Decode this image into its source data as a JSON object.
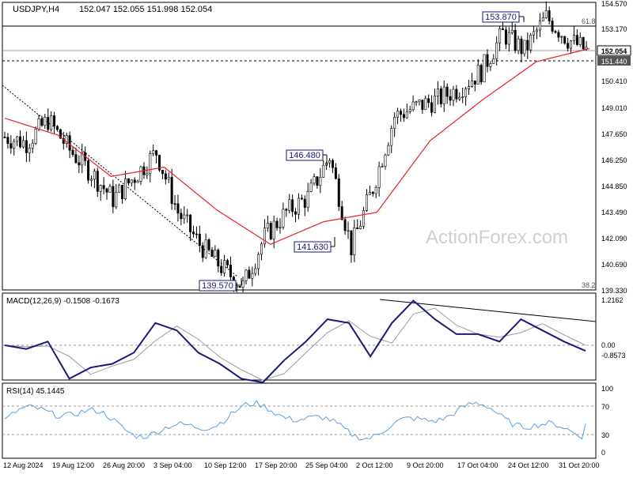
{
  "header": {
    "symbol": "USDJPY,H4",
    "ohlc": "152.047 152.055 151.998 152.054"
  },
  "watermark": "ActionForex.com",
  "colors": {
    "candle": "#000000",
    "ma": "#e8202a",
    "macd": "#1a1a7a",
    "signal": "#9a9a9a",
    "rsi": "#5aa0e0",
    "grid": "#9a9a9a",
    "label_box": "#1a1a7a"
  },
  "price_axis": {
    "ticks": [
      "154.570",
      "153.170",
      "151.440",
      "150.410",
      "149.010",
      "147.650",
      "146.250",
      "144.850",
      "143.490",
      "142.090",
      "140.690",
      "139.330"
    ]
  },
  "price_tags": {
    "current": "152.054",
    "support": "151.440"
  },
  "fib": {
    "upper": "61.8",
    "lower": "38.2"
  },
  "annotations": {
    "a1": "139.570",
    "a2": "146.480",
    "a3": "141.630",
    "a4": "153.870"
  },
  "macd": {
    "label": "MACD(12,26,9) -0.1508 -0.1673",
    "ticks": [
      "1.2162",
      "0.00",
      "-0.8573"
    ]
  },
  "rsi": {
    "label": "RSI(14) 45.1445",
    "ticks": [
      "100",
      "70",
      "30",
      "0"
    ]
  },
  "time_axis": {
    "ticks": [
      "12 Aug 2024",
      "19 Aug 12:00",
      "26 Aug 20:00",
      "3 Sep 04:00",
      "10 Sep 12:00",
      "17 Sep 20:00",
      "25 Sep 04:00",
      "2 Oct 12:00",
      "9 Oct 20:00",
      "17 Oct 04:00",
      "24 Oct 12:00",
      "31 Oct 20:00"
    ]
  },
  "chart_data": {
    "type": "line",
    "title": "USDJPY,H4",
    "close_path": [
      [
        "12 Aug 2024",
        147.5
      ],
      [
        "15 Aug",
        147.2
      ],
      [
        "16 Aug",
        148.4
      ],
      [
        "19 Aug 12:00",
        146.8
      ],
      [
        "22 Aug",
        145.6
      ],
      [
        "26 Aug 20:00",
        144.2
      ],
      [
        "29 Aug",
        145.4
      ],
      [
        "3 Sep 04:00",
        146.7
      ],
      [
        "6 Sep",
        143.5
      ],
      [
        "10 Sep 12:00",
        141.8
      ],
      [
        "13 Sep",
        140.6
      ],
      [
        "16 Sep",
        139.57
      ],
      [
        "17 Sep 20:00",
        142.2
      ],
      [
        "20 Sep",
        143.5
      ],
      [
        "25 Sep 04:00",
        144.3
      ],
      [
        "27 Sep",
        146.48
      ],
      [
        "30 Sep",
        141.63
      ],
      [
        "2 Oct 12:00",
        144.8
      ],
      [
        "4 Oct",
        148.6
      ],
      [
        "9 Oct 20:00",
        149.1
      ],
      [
        "14 Oct",
        149.5
      ],
      [
        "17 Oct 04:00",
        150.1
      ],
      [
        "21 Oct",
        151.0
      ],
      [
        "23 Oct",
        153.0
      ],
      [
        "24 Oct 12:00",
        152.1
      ],
      [
        "28 Oct",
        153.87
      ],
      [
        "30 Oct",
        152.7
      ],
      [
        "31 Oct 20:00",
        152.0
      ]
    ],
    "moving_average": [
      [
        "12 Aug 2024",
        148.5
      ],
      [
        "19 Aug 12:00",
        147.6
      ],
      [
        "26 Aug 20:00",
        145.4
      ],
      [
        "3 Sep 04:00",
        145.9
      ],
      [
        "10 Sep 12:00",
        143.6
      ],
      [
        "17 Sep 20:00",
        141.8
      ],
      [
        "25 Sep 04:00",
        143.0
      ],
      [
        "2 Oct 12:00",
        143.5
      ],
      [
        "9 Oct 20:00",
        147.3
      ],
      [
        "17 Oct 04:00",
        149.5
      ],
      [
        "24 Oct 12:00",
        151.5
      ],
      [
        "31 Oct 20:00",
        152.2
      ]
    ],
    "levels": [
      153.17,
      152.054,
      151.44
    ],
    "swing_labels": [
      {
        "x": "16 Sep",
        "y": 139.57,
        "text": "139.570"
      },
      {
        "x": "27 Sep",
        "y": 146.48,
        "text": "146.480"
      },
      {
        "x": "30 Sep",
        "y": 141.63,
        "text": "141.630"
      },
      {
        "x": "28 Oct",
        "y": 153.87,
        "text": "153.870"
      }
    ],
    "macd_values": {
      "macd": -0.1508,
      "signal": -0.1673
    },
    "rsi_value": 45.1445
  }
}
